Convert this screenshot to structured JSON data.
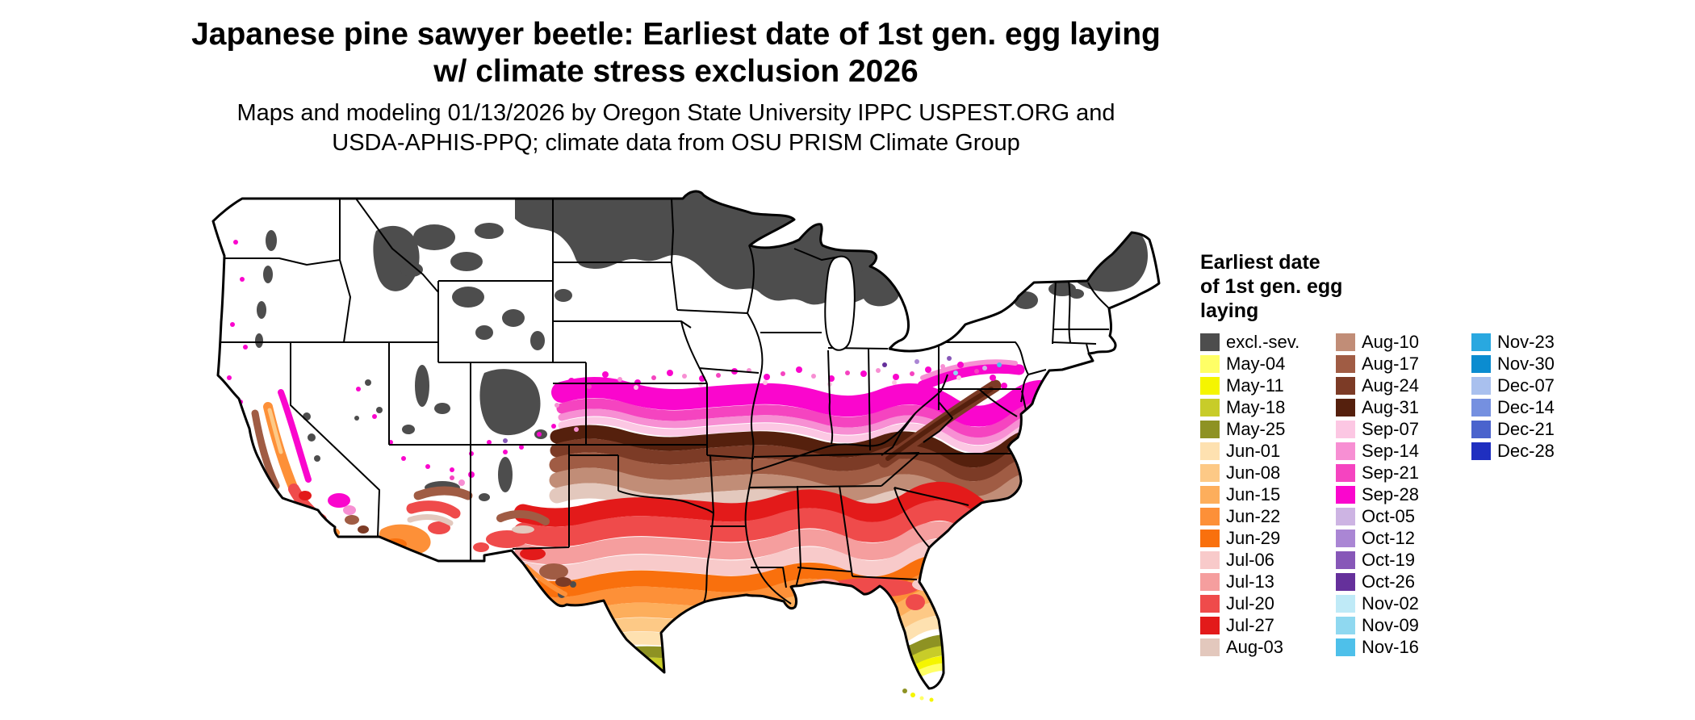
{
  "title": {
    "line1": "Japanese pine sawyer beetle: Earliest date of 1st gen. egg laying",
    "line2": "w/ climate stress exclusion 2026"
  },
  "subtitle": {
    "line1": "Maps and modeling 01/13/2026 by Oregon State University IPPC USPEST.ORG and",
    "line2": "USDA-APHIS-PPQ; climate data from OSU PRISM Climate Group"
  },
  "legend": {
    "title_lines": [
      "Earliest date",
      "of 1st gen. egg",
      "laying"
    ],
    "columns": [
      [
        {
          "label": "excl.-sev.",
          "color": "#4d4d4d"
        },
        {
          "label": "May-04",
          "color": "#ffff66"
        },
        {
          "label": "May-11",
          "color": "#f5f500"
        },
        {
          "label": "May-18",
          "color": "#c8cc29"
        },
        {
          "label": "May-25",
          "color": "#8e9223"
        },
        {
          "label": "Jun-01",
          "color": "#fee1b0"
        },
        {
          "label": "Jun-08",
          "color": "#fdc986"
        },
        {
          "label": "Jun-15",
          "color": "#fdae5c"
        },
        {
          "label": "Jun-22",
          "color": "#fd9038"
        },
        {
          "label": "Jun-29",
          "color": "#f9700d"
        },
        {
          "label": "Jul-06",
          "color": "#f8caca"
        },
        {
          "label": "Jul-13",
          "color": "#f59e9e"
        },
        {
          "label": "Jul-20",
          "color": "#ef4b4b"
        },
        {
          "label": "Jul-27",
          "color": "#e31a1a"
        },
        {
          "label": "Aug-03",
          "color": "#e3c8bd"
        }
      ],
      [
        {
          "label": "Aug-10",
          "color": "#c18d77"
        },
        {
          "label": "Aug-17",
          "color": "#a05c44"
        },
        {
          "label": "Aug-24",
          "color": "#7c3b26"
        },
        {
          "label": "Aug-31",
          "color": "#55200d"
        },
        {
          "label": "Sep-07",
          "color": "#fcc7e3"
        },
        {
          "label": "Sep-14",
          "color": "#f78fd3"
        },
        {
          "label": "Sep-21",
          "color": "#f544c0"
        },
        {
          "label": "Sep-28",
          "color": "#fa06cd"
        },
        {
          "label": "Oct-05",
          "color": "#cdb4e3"
        },
        {
          "label": "Oct-12",
          "color": "#aa86d4"
        },
        {
          "label": "Oct-19",
          "color": "#8757b8"
        },
        {
          "label": "Oct-26",
          "color": "#65309b"
        },
        {
          "label": "Nov-02",
          "color": "#bfeaf7"
        },
        {
          "label": "Nov-09",
          "color": "#8fd8f0"
        },
        {
          "label": "Nov-16",
          "color": "#4ec0ea"
        }
      ],
      [
        {
          "label": "Nov-23",
          "color": "#29a8e0"
        },
        {
          "label": "Nov-30",
          "color": "#0b8cd0"
        },
        {
          "label": "Dec-07",
          "color": "#a9c0ee"
        },
        {
          "label": "Dec-14",
          "color": "#7590e0"
        },
        {
          "label": "Dec-21",
          "color": "#4a63cd"
        },
        {
          "label": "Dec-28",
          "color": "#1f2fc0"
        }
      ]
    ]
  }
}
